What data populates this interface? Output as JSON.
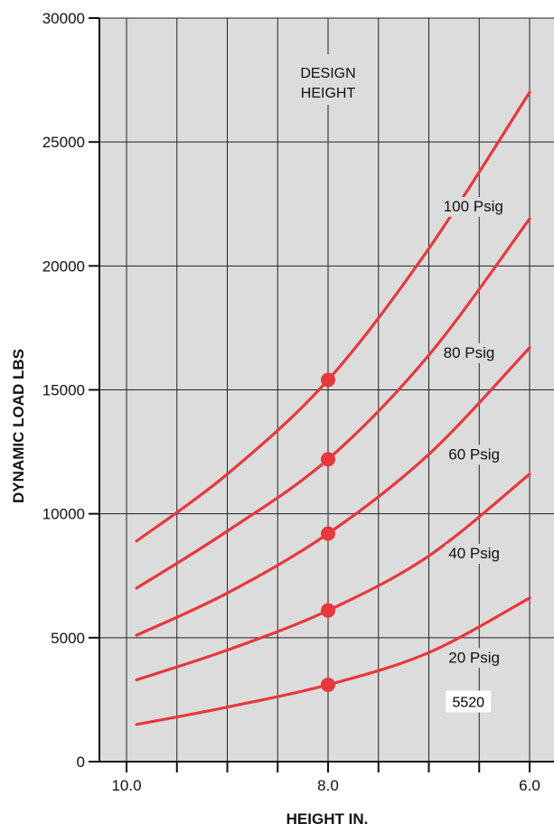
{
  "chart_data": {
    "type": "line",
    "xlabel": "HEIGHT IN.",
    "ylabel": "DYNAMIC LOAD LBS",
    "xlim": [
      10.0,
      6.0
    ],
    "ylim": [
      0,
      30000
    ],
    "x_reversed": true,
    "x_tick_labels": [
      {
        "value": 10.0,
        "label": "10.0"
      },
      {
        "value": 8.0,
        "label": "8.0"
      },
      {
        "value": 6.0,
        "label": "6.0"
      }
    ],
    "y_ticks": [
      0,
      5000,
      10000,
      15000,
      20000,
      25000,
      30000
    ],
    "grid": true,
    "annotation": {
      "line1": "DESIGN",
      "line2": "HEIGHT",
      "x": 8.0
    },
    "model_label": "5520",
    "design_height": 8.0,
    "series": [
      {
        "name": "100 Psig",
        "x": [
          9.9,
          9.0,
          8.0,
          7.0,
          6.0
        ],
        "values": [
          8900,
          11600,
          15400,
          20700,
          27000
        ],
        "design_point": 15400
      },
      {
        "name": "80 Psig",
        "x": [
          9.9,
          9.0,
          8.0,
          7.0,
          6.0
        ],
        "values": [
          7000,
          9300,
          12200,
          16400,
          21900
        ],
        "design_point": 12200
      },
      {
        "name": "60 Psig",
        "x": [
          9.9,
          9.0,
          8.0,
          7.0,
          6.0
        ],
        "values": [
          5100,
          6800,
          9200,
          12400,
          16700
        ],
        "design_point": 9200
      },
      {
        "name": "40 Psig",
        "x": [
          9.9,
          9.0,
          8.0,
          7.0,
          6.0
        ],
        "values": [
          3300,
          4500,
          6100,
          8300,
          11600
        ],
        "design_point": 6100
      },
      {
        "name": "20 Psig",
        "x": [
          9.9,
          9.0,
          8.0,
          7.0,
          6.0
        ],
        "values": [
          1500,
          2200,
          3100,
          4400,
          6600
        ],
        "design_point": 3100
      }
    ],
    "colors": {
      "curve": "#e8383d",
      "plot_background": "#dcdcdc",
      "grid": "#222222"
    }
  }
}
